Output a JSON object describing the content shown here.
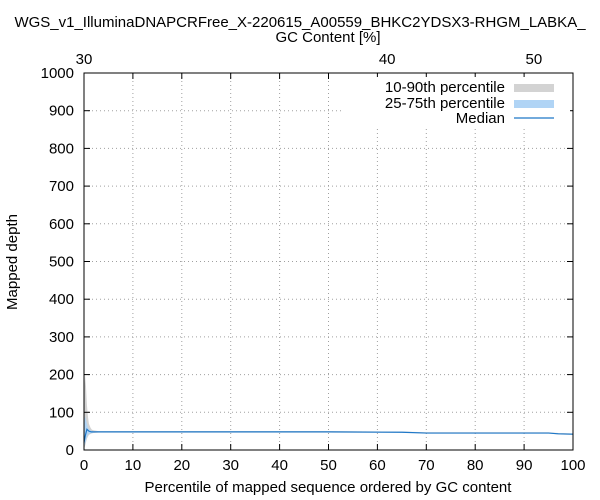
{
  "chart_data": {
    "type": "area",
    "title": "WGS_v1_IlluminaDNAPCRFree_X-220615_A00559_BHKC2YDSX3-RHGM_LABKA_",
    "xlabel": "Percentile of mapped sequence ordered by GC content",
    "ylabel": "Mapped depth",
    "x2label": "GC Content [%]",
    "xlim": [
      0,
      100
    ],
    "ylim": [
      0,
      1000
    ],
    "x2_ticks": [
      30,
      40,
      50
    ],
    "x2_map": {
      "gc": [
        30,
        40,
        50
      ],
      "percentile": [
        0,
        62,
        92
      ]
    },
    "xticks": [
      0,
      10,
      20,
      30,
      40,
      50,
      60,
      70,
      80,
      90,
      100
    ],
    "yticks": [
      0,
      100,
      200,
      300,
      400,
      500,
      600,
      700,
      800,
      900,
      1000
    ],
    "grid": true,
    "legend_position": "top-right",
    "colors": {
      "p10_90": "#d3d3d3",
      "p25_75": "#b0d4f5",
      "median": "#1f78c8"
    },
    "series": [
      {
        "name": "10-90th percentile",
        "kind": "band",
        "x": [
          0,
          0.2,
          0.4,
          0.6,
          0.8,
          1.0,
          1.3,
          1.6,
          2,
          3,
          10,
          30,
          50,
          65,
          70,
          80,
          90,
          95,
          97,
          100
        ],
        "low": [
          5,
          10,
          20,
          30,
          35,
          40,
          42,
          44,
          45,
          46,
          46,
          46,
          46,
          46,
          44,
          44,
          44,
          44,
          41,
          40
        ],
        "high": [
          150,
          200,
          170,
          120,
          90,
          70,
          60,
          54,
          52,
          50,
          50,
          50,
          50,
          49,
          47,
          47,
          47,
          47,
          45,
          44
        ]
      },
      {
        "name": "25-75th percentile",
        "kind": "band",
        "x": [
          0,
          0.2,
          0.4,
          0.6,
          0.8,
          1.0,
          1.3,
          1.6,
          2,
          3,
          10,
          30,
          50,
          65,
          70,
          80,
          90,
          95,
          97,
          100
        ],
        "low": [
          10,
          15,
          25,
          35,
          40,
          43,
          44,
          45,
          46,
          47,
          47,
          47,
          47,
          47,
          45,
          45,
          45,
          45,
          42,
          41
        ],
        "high": [
          60,
          90,
          80,
          70,
          60,
          55,
          52,
          50,
          49,
          49,
          49,
          49,
          49,
          48,
          46,
          46,
          46,
          46,
          44,
          43
        ]
      },
      {
        "name": "Median",
        "kind": "line",
        "x": [
          0,
          0.3,
          0.6,
          1.0,
          1.5,
          2,
          10,
          30,
          50,
          65,
          70,
          80,
          90,
          95,
          97,
          100
        ],
        "values": [
          20,
          40,
          55,
          50,
          48,
          48,
          48,
          48,
          48,
          47,
          45,
          45,
          45,
          45,
          43,
          42
        ]
      }
    ]
  }
}
